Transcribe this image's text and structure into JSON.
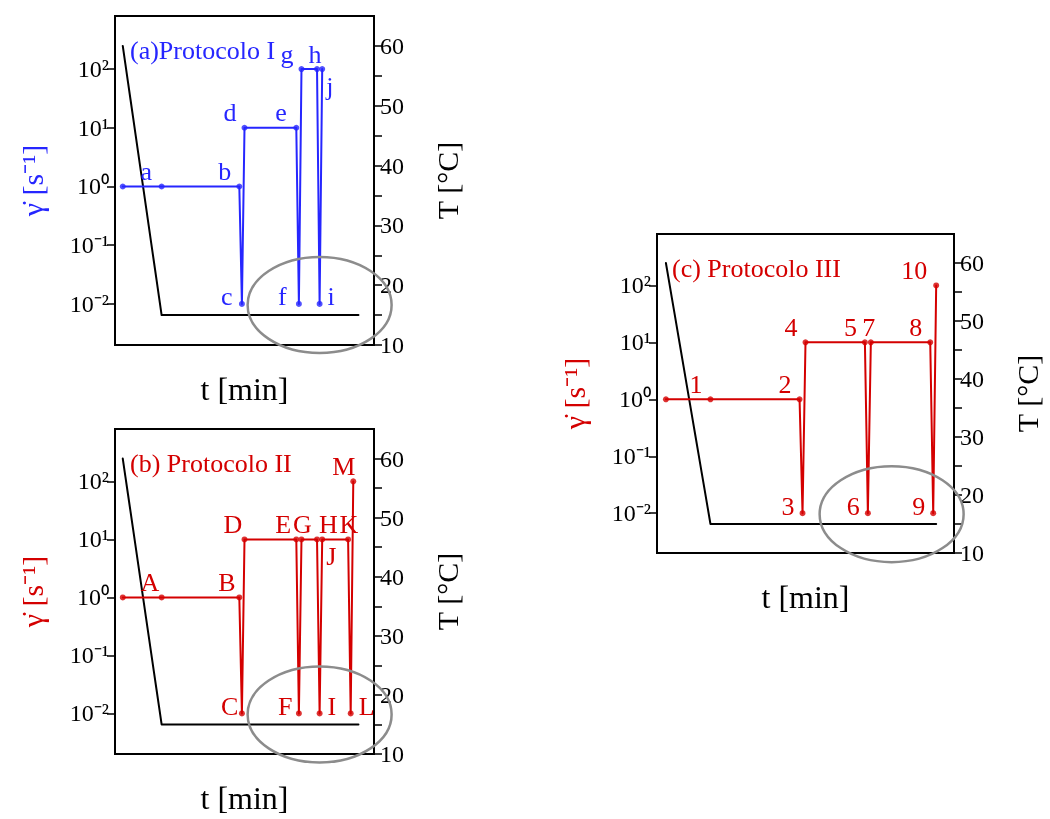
{
  "chart_data": [
    {
      "type": "line",
      "title": "(a)Protocolo I",
      "xlabel": "t [min]",
      "ylabel": "γ̇ [s⁻¹]",
      "y2label": "T [°C]",
      "log": "y",
      "tick_labels": "y",
      "categories": [
        null,
        null,
        null,
        null,
        null,
        null,
        null,
        null,
        null,
        null,
        null,
        null,
        null,
        null,
        null,
        null,
        null,
        null,
        null,
        null,
        null,
        null,
        null,
        null,
        null,
        null,
        null,
        null,
        null,
        null,
        null,
        null,
        null,
        null,
        null,
        null,
        null,
        null,
        null,
        null,
        null,
        null,
        null,
        null,
        null,
        null,
        null,
        null,
        null,
        null,
        null,
        null,
        null,
        null,
        null,
        null,
        null,
        null,
        null,
        null,
        null,
        null,
        null,
        null,
        null,
        null,
        null,
        null,
        null,
        null,
        null,
        null,
        null,
        null,
        null,
        null,
        null,
        null,
        null,
        null,
        null,
        null,
        null,
        null,
        null,
        null,
        null,
        null,
        null,
        null,
        null,
        null,
        null,
        null,
        null,
        null,
        null,
        null,
        null,
        null,
        null
      ],
      "ylim": [
        0.002,
        800
      ],
      "yticks": [
        {
          "value": 0.01,
          "label": "10⁻²"
        },
        {
          "value": 0.1,
          "label": "10⁻¹"
        },
        {
          "value": 1,
          "label": "10⁰"
        },
        {
          "value": 10,
          "label": "10¹"
        },
        {
          "value": 100,
          "label": "10²"
        }
      ],
      "y2lim": [
        10,
        65
      ],
      "y2ticks": [
        10,
        {
          "value": 15,
          "label": null
        },
        20,
        {
          "value": 25,
          "label": null
        },
        30,
        {
          "value": 35,
          "label": null
        },
        40,
        {
          "value": 45,
          "label": null
        },
        50,
        {
          "value": 55,
          "label": null
        },
        60
      ],
      "series": [
        {
          "color": "#2626ff",
          "values": [
            null,
            null,
            null,
            1,
            1,
            1,
            1,
            1,
            1,
            1,
            1,
            1,
            1,
            1,
            1,
            1,
            1,
            1,
            1,
            1,
            1,
            1,
            1,
            1,
            1,
            1,
            1,
            1,
            1,
            1,
            1,
            1,
            1,
            1,
            1,
            1,
            1,
            1,
            1,
            1,
            1,
            1,
            1,
            1,
            1,
            1,
            1,
            1,
            1,
            0.01,
            10,
            10,
            10,
            10,
            10,
            10,
            10,
            10,
            10,
            10,
            10,
            10,
            10,
            10,
            10,
            10,
            10,
            10,
            10,
            10,
            10,
            0.01,
            100,
            100,
            100,
            100,
            100,
            100,
            100,
            0.01,
            100,
            null,
            null,
            null,
            null,
            null,
            null,
            null,
            null,
            null,
            null,
            null,
            null,
            null,
            null,
            null,
            null,
            null,
            null,
            null,
            null
          ]
        },
        {
          "color": "#000000",
          "axis": "y2",
          "values": [
            null,
            null,
            null,
            60,
            57,
            54,
            51,
            48,
            45,
            42,
            39,
            36,
            33,
            30,
            27,
            24,
            21,
            18,
            15,
            15,
            15,
            15,
            15,
            15,
            15,
            15,
            15,
            15,
            15,
            15,
            15,
            15,
            15,
            15,
            15,
            15,
            15,
            15,
            15,
            15,
            15,
            15,
            15,
            15,
            15,
            15,
            15,
            15,
            15,
            15,
            15,
            15,
            15,
            15,
            15,
            15,
            15,
            15,
            15,
            15,
            15,
            15,
            15,
            15,
            15,
            15,
            15,
            15,
            15,
            15,
            15,
            15,
            15,
            15,
            15,
            15,
            15,
            15,
            15,
            15,
            15,
            15,
            15,
            15,
            15,
            15,
            15,
            15,
            15,
            15,
            15,
            15,
            15,
            15,
            15,
            null,
            null,
            null,
            null,
            null,
            null
          ]
        },
        {
          "type": "scatter",
          "color": "#2626ff",
          "marker": "circle",
          "values": [
            null,
            null,
            null,
            1,
            null,
            null,
            null,
            null,
            null,
            null,
            null,
            null,
            null,
            null,
            null,
            null,
            null,
            null,
            1,
            null,
            null,
            null,
            null,
            null,
            null,
            null,
            null,
            null,
            null,
            null,
            null,
            null,
            null,
            null,
            null,
            null,
            null,
            null,
            null,
            null,
            null,
            null,
            null,
            null,
            null,
            null,
            null,
            null,
            1,
            0.01,
            10,
            null,
            null,
            null,
            null,
            null,
            null,
            null,
            null,
            null,
            null,
            null,
            null,
            null,
            null,
            null,
            null,
            null,
            null,
            null,
            10,
            0.01,
            100,
            null,
            null,
            null,
            null,
            null,
            100,
            0.01,
            100,
            null,
            null,
            null,
            null,
            null,
            null,
            null,
            null,
            null,
            null,
            null,
            null,
            null,
            null,
            null,
            null,
            null,
            null,
            null,
            null
          ]
        }
      ],
      "annotations": [
        "a",
        "b",
        "c",
        "d",
        "e",
        "f",
        "g",
        "h",
        "i",
        "j"
      ]
    },
    {
      "type": "line",
      "title": "(b) Protocolo II",
      "xlabel": "t [min]",
      "ylabel": "γ̇ [s⁻¹]",
      "y2label": "T [°C]",
      "log": "y",
      "tick_labels": "y",
      "categories": [
        null,
        null,
        null,
        null,
        null,
        null,
        null,
        null,
        null,
        null,
        null,
        null,
        null,
        null,
        null,
        null,
        null,
        null,
        null,
        null,
        null,
        null,
        null,
        null,
        null,
        null,
        null,
        null,
        null,
        null,
        null,
        null,
        null,
        null,
        null,
        null,
        null,
        null,
        null,
        null,
        null,
        null,
        null,
        null,
        null,
        null,
        null,
        null,
        null,
        null,
        null,
        null,
        null,
        null,
        null,
        null,
        null,
        null,
        null,
        null,
        null,
        null,
        null,
        null,
        null,
        null,
        null,
        null,
        null,
        null,
        null,
        null,
        null,
        null,
        null,
        null,
        null,
        null,
        null,
        null,
        null,
        null,
        null,
        null,
        null,
        null,
        null,
        null,
        null,
        null,
        null,
        null,
        null,
        null,
        null,
        null,
        null,
        null,
        null,
        null,
        null
      ],
      "ylim": [
        0.002,
        800
      ],
      "yticks": [
        {
          "value": 0.01,
          "label": "10⁻²"
        },
        {
          "value": 0.1,
          "label": "10⁻¹"
        },
        {
          "value": 1,
          "label": "10⁰"
        },
        {
          "value": 10,
          "label": "10¹"
        },
        {
          "value": 100,
          "label": "10²"
        }
      ],
      "y2lim": [
        10,
        65
      ],
      "y2ticks": [
        10,
        {
          "value": 15,
          "label": null
        },
        20,
        {
          "value": 25,
          "label": null
        },
        30,
        {
          "value": 35,
          "label": null
        },
        40,
        {
          "value": 45,
          "label": null
        },
        50,
        {
          "value": 55,
          "label": null
        },
        60
      ],
      "series": [
        {
          "color": "#d40000",
          "values": [
            null,
            null,
            null,
            1,
            1,
            1,
            1,
            1,
            1,
            1,
            1,
            1,
            1,
            1,
            1,
            1,
            1,
            1,
            1,
            1,
            1,
            1,
            1,
            1,
            1,
            1,
            1,
            1,
            1,
            1,
            1,
            1,
            1,
            1,
            1,
            1,
            1,
            1,
            1,
            1,
            1,
            1,
            1,
            1,
            1,
            1,
            1,
            1,
            1,
            0.01,
            10,
            10,
            10,
            10,
            10,
            10,
            10,
            10,
            10,
            10,
            10,
            10,
            10,
            10,
            10,
            10,
            10,
            10,
            10,
            10,
            10,
            0.01,
            10,
            10,
            10,
            10,
            10,
            10,
            10,
            0.01,
            10,
            10,
            10,
            10,
            10,
            10,
            10,
            10,
            10,
            10,
            10,
            0.01,
            100,
            null,
            null,
            null,
            null,
            null,
            null,
            null,
            null
          ]
        },
        {
          "color": "#000000",
          "axis": "y2",
          "values": [
            null,
            null,
            null,
            60,
            57,
            54,
            51,
            48,
            45,
            42,
            39,
            36,
            33,
            30,
            27,
            24,
            21,
            18,
            15,
            15,
            15,
            15,
            15,
            15,
            15,
            15,
            15,
            15,
            15,
            15,
            15,
            15,
            15,
            15,
            15,
            15,
            15,
            15,
            15,
            15,
            15,
            15,
            15,
            15,
            15,
            15,
            15,
            15,
            15,
            15,
            15,
            15,
            15,
            15,
            15,
            15,
            15,
            15,
            15,
            15,
            15,
            15,
            15,
            15,
            15,
            15,
            15,
            15,
            15,
            15,
            15,
            15,
            15,
            15,
            15,
            15,
            15,
            15,
            15,
            15,
            15,
            15,
            15,
            15,
            15,
            15,
            15,
            15,
            15,
            15,
            15,
            15,
            15,
            15,
            15,
            null,
            null,
            null,
            null,
            null,
            null
          ]
        },
        {
          "type": "scatter",
          "color": "#d40000",
          "marker": "circle",
          "values": [
            null,
            null,
            null,
            1,
            null,
            null,
            null,
            null,
            null,
            null,
            null,
            null,
            null,
            null,
            null,
            null,
            null,
            null,
            1,
            null,
            null,
            null,
            null,
            null,
            null,
            null,
            null,
            null,
            null,
            null,
            null,
            null,
            null,
            null,
            null,
            null,
            null,
            null,
            null,
            null,
            null,
            null,
            null,
            null,
            null,
            null,
            null,
            null,
            1,
            0.01,
            10,
            null,
            null,
            null,
            null,
            null,
            null,
            null,
            null,
            null,
            null,
            null,
            null,
            null,
            null,
            null,
            null,
            null,
            null,
            null,
            10,
            0.01,
            10,
            null,
            null,
            null,
            null,
            null,
            10,
            0.01,
            10,
            null,
            null,
            null,
            null,
            null,
            null,
            null,
            null,
            null,
            10,
            0.01,
            100,
            null,
            null,
            null,
            null,
            null,
            null,
            null,
            null
          ]
        }
      ],
      "annotations": [
        "A",
        "B",
        "C",
        "D",
        "E",
        "F",
        "G",
        "H",
        "I",
        "J",
        "K",
        "L",
        "M"
      ]
    },
    {
      "type": "line",
      "title": "(c) Protocolo III",
      "xlabel": "t [min]",
      "ylabel": "γ̇ [s⁻¹]",
      "y2label": "T [°C]",
      "log": "y",
      "tick_labels": "y",
      "categories": [
        null,
        null,
        null,
        null,
        null,
        null,
        null,
        null,
        null,
        null,
        null,
        null,
        null,
        null,
        null,
        null,
        null,
        null,
        null,
        null,
        null,
        null,
        null,
        null,
        null,
        null,
        null,
        null,
        null,
        null,
        null,
        null,
        null,
        null,
        null,
        null,
        null,
        null,
        null,
        null,
        null,
        null,
        null,
        null,
        null,
        null,
        null,
        null,
        null,
        null,
        null,
        null,
        null,
        null,
        null,
        null,
        null,
        null,
        null,
        null,
        null,
        null,
        null,
        null,
        null,
        null,
        null,
        null,
        null,
        null,
        null,
        null,
        null,
        null,
        null,
        null,
        null,
        null,
        null,
        null,
        null,
        null,
        null,
        null,
        null,
        null,
        null,
        null,
        null,
        null,
        null,
        null,
        null,
        null,
        null,
        null,
        null,
        null,
        null,
        null,
        null
      ],
      "ylim": [
        0.002,
        800
      ],
      "yticks": [
        {
          "value": 0.01,
          "label": "10⁻²"
        },
        {
          "value": 0.1,
          "label": "10⁻¹"
        },
        {
          "value": 1,
          "label": "10⁰"
        },
        {
          "value": 10,
          "label": "10¹"
        },
        {
          "value": 100,
          "label": "10²"
        }
      ],
      "y2lim": [
        10,
        65
      ],
      "y2ticks": [
        10,
        {
          "value": 15,
          "label": null
        },
        20,
        {
          "value": 25,
          "label": null
        },
        30,
        {
          "value": 35,
          "label": null
        },
        40,
        {
          "value": 45,
          "label": null
        },
        50,
        {
          "value": 55,
          "label": null
        },
        60
      ],
      "series": [
        {
          "color": "#d40000",
          "values": [
            null,
            null,
            null,
            1,
            1,
            1,
            1,
            1,
            1,
            1,
            1,
            1,
            1,
            1,
            1,
            1,
            1,
            1,
            1,
            1,
            1,
            1,
            1,
            1,
            1,
            1,
            1,
            1,
            1,
            1,
            1,
            1,
            1,
            1,
            1,
            1,
            1,
            1,
            1,
            1,
            1,
            1,
            1,
            1,
            1,
            1,
            1,
            1,
            1,
            0.01,
            10,
            10,
            10,
            10,
            10,
            10,
            10,
            10,
            10,
            10,
            10,
            10,
            10,
            10,
            10,
            10,
            10,
            10,
            10,
            10,
            10,
            0.01,
            10,
            10,
            10,
            10,
            10,
            10,
            10,
            10,
            10,
            10,
            10,
            10,
            10,
            10,
            10,
            10,
            10,
            10,
            10,
            10,
            10,
            0.01,
            100,
            null,
            null,
            null,
            null,
            null,
            null
          ]
        },
        {
          "color": "#000000",
          "axis": "y2",
          "values": [
            null,
            null,
            null,
            60,
            57,
            54,
            51,
            48,
            45,
            42,
            39,
            36,
            33,
            30,
            27,
            24,
            21,
            18,
            15,
            15,
            15,
            15,
            15,
            15,
            15,
            15,
            15,
            15,
            15,
            15,
            15,
            15,
            15,
            15,
            15,
            15,
            15,
            15,
            15,
            15,
            15,
            15,
            15,
            15,
            15,
            15,
            15,
            15,
            15,
            15,
            15,
            15,
            15,
            15,
            15,
            15,
            15,
            15,
            15,
            15,
            15,
            15,
            15,
            15,
            15,
            15,
            15,
            15,
            15,
            15,
            15,
            15,
            15,
            15,
            15,
            15,
            15,
            15,
            15,
            15,
            15,
            15,
            15,
            15,
            15,
            15,
            15,
            15,
            15,
            15,
            15,
            15,
            15,
            15,
            15,
            null,
            null,
            null,
            null,
            null,
            null
          ]
        },
        {
          "type": "scatter",
          "color": "#d40000",
          "marker": "circle",
          "values": [
            null,
            null,
            null,
            1,
            null,
            null,
            null,
            null,
            null,
            null,
            null,
            null,
            null,
            null,
            null,
            null,
            null,
            null,
            1,
            null,
            null,
            null,
            null,
            null,
            null,
            null,
            null,
            null,
            null,
            null,
            null,
            null,
            null,
            null,
            null,
            null,
            null,
            null,
            null,
            null,
            null,
            null,
            null,
            null,
            null,
            null,
            null,
            null,
            1,
            0.01,
            10,
            null,
            null,
            null,
            null,
            null,
            null,
            null,
            null,
            null,
            null,
            null,
            null,
            null,
            null,
            null,
            null,
            null,
            null,
            null,
            10,
            0.01,
            10,
            null,
            null,
            null,
            null,
            null,
            null,
            null,
            null,
            null,
            null,
            null,
            null,
            null,
            null,
            null,
            null,
            null,
            null,
            null,
            10,
            0.01,
            100,
            null,
            null,
            null,
            null,
            null,
            null
          ]
        }
      ],
      "annotations": [
        "1",
        "2",
        "3",
        "4",
        "5",
        "6",
        "7",
        "8",
        "9",
        "10"
      ]
    }
  ]
}
